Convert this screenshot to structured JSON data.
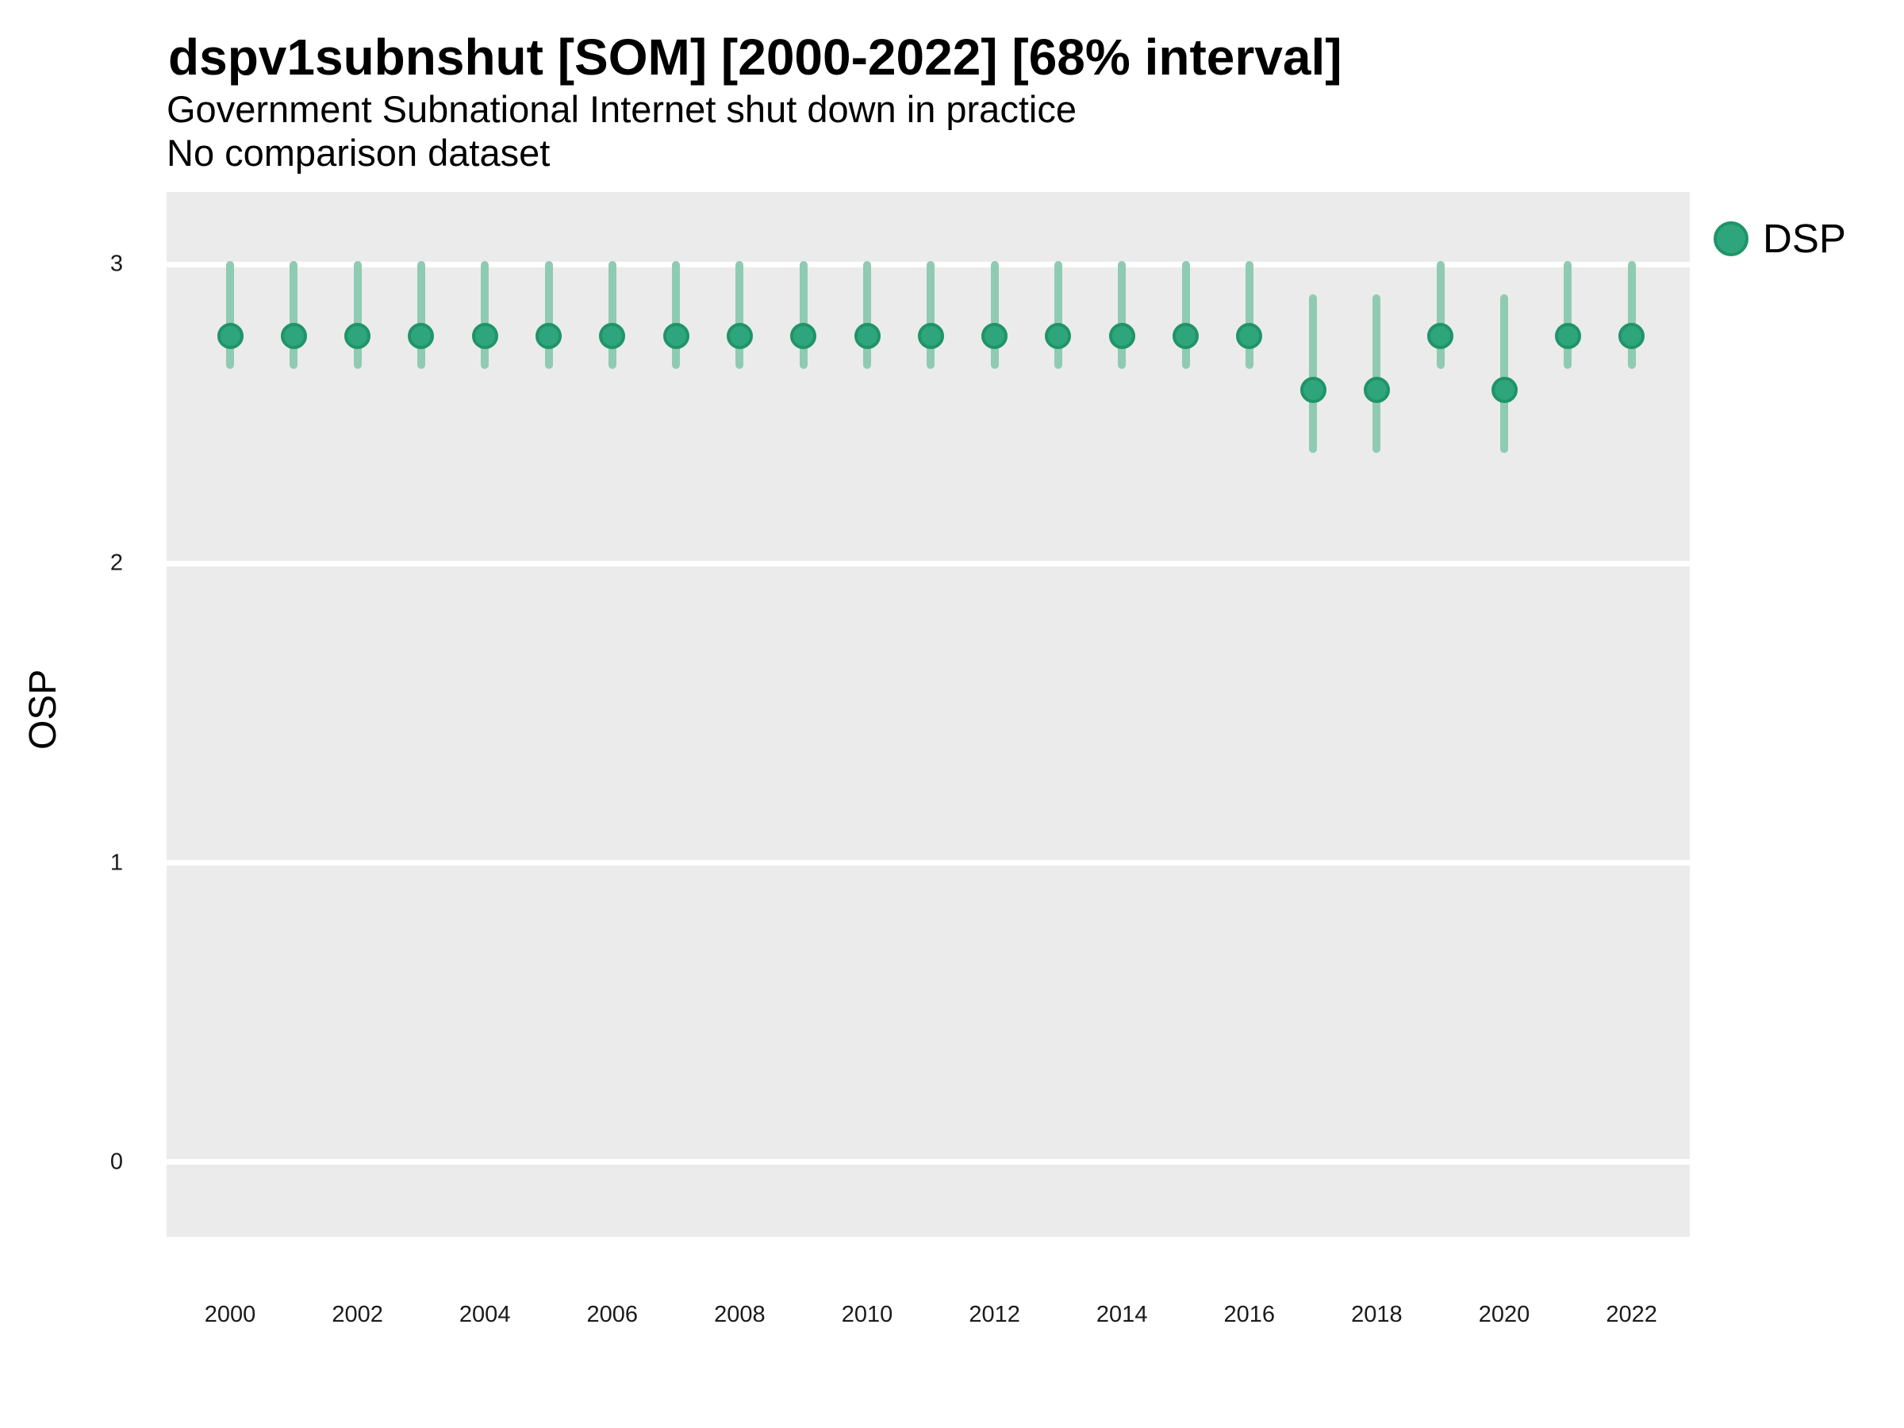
{
  "header": {
    "title": "dspv1subnshut [SOM] [2000-2022] [68% interval]",
    "subtitle": "Government Subnational Internet shut down in practice",
    "note": "No comparison dataset"
  },
  "legend": {
    "label": "DSP",
    "position": "right-top",
    "marker": "circle"
  },
  "colors": {
    "panel_background": "#EBEBEB",
    "gridline": "#FFFFFF",
    "point_fill": "#2EA57C",
    "point_stroke": "#1F9468",
    "interval_line": "#8FCBB2",
    "text": "#000000",
    "axis_text": "#1A1A1A"
  },
  "chart_data": {
    "type": "pointrange",
    "title": "dspv1subnshut [SOM] [2000-2022] [68% interval]",
    "subtitle": "Government Subnational Internet shut down in practice",
    "note": "No comparison dataset",
    "interval_level": "68%",
    "xlabel": "",
    "ylabel": "OSP",
    "ylim": [
      -0.25,
      3.24
    ],
    "yticks": [
      3,
      2,
      1,
      0
    ],
    "xticks": [
      2000,
      2002,
      2004,
      2006,
      2008,
      2010,
      2012,
      2014,
      2016,
      2018,
      2020,
      2022
    ],
    "grid": "major-horizontal-only",
    "legend_entries": [
      "DSP"
    ],
    "series": [
      {
        "name": "DSP",
        "x": [
          2000,
          2001,
          2002,
          2003,
          2004,
          2005,
          2006,
          2007,
          2008,
          2009,
          2010,
          2011,
          2012,
          2013,
          2014,
          2015,
          2016,
          2017,
          2018,
          2019,
          2020,
          2021,
          2022
        ],
        "est": [
          2.76,
          2.76,
          2.76,
          2.76,
          2.76,
          2.76,
          2.76,
          2.76,
          2.76,
          2.76,
          2.76,
          2.76,
          2.76,
          2.76,
          2.76,
          2.76,
          2.76,
          2.58,
          2.58,
          2.76,
          2.58,
          2.76,
          2.76
        ],
        "lo": [
          2.65,
          2.65,
          2.65,
          2.65,
          2.65,
          2.65,
          2.65,
          2.65,
          2.65,
          2.65,
          2.65,
          2.65,
          2.65,
          2.65,
          2.65,
          2.65,
          2.65,
          2.37,
          2.37,
          2.65,
          2.37,
          2.65,
          2.65
        ],
        "hi": [
          3.01,
          3.01,
          3.01,
          3.01,
          3.01,
          3.01,
          3.01,
          3.01,
          3.01,
          3.01,
          3.01,
          3.01,
          3.01,
          3.01,
          3.01,
          3.01,
          3.01,
          2.9,
          2.9,
          3.01,
          2.9,
          3.01,
          3.01
        ]
      }
    ]
  }
}
